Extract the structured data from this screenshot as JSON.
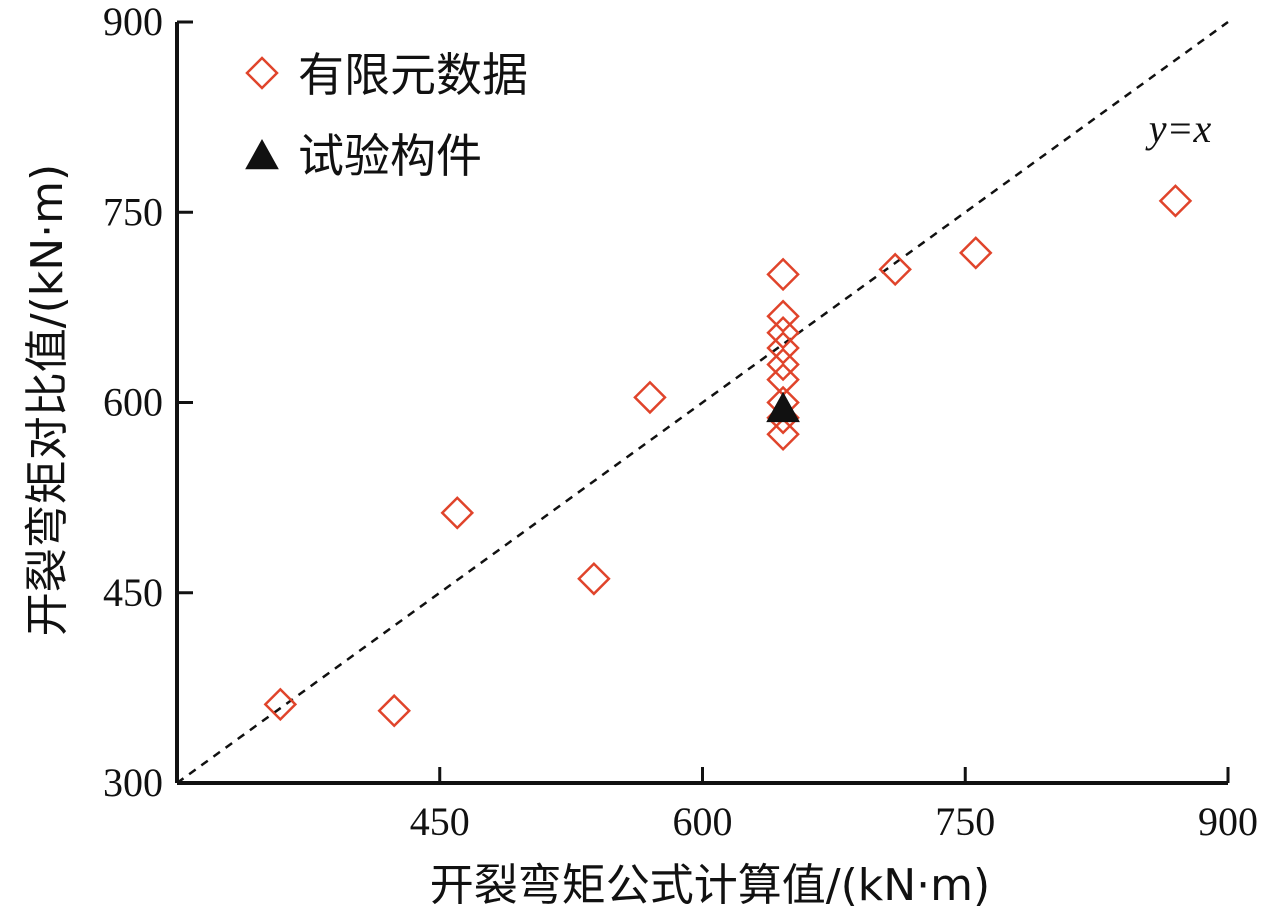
{
  "chart_data": {
    "type": "scatter",
    "xlabel": "开裂弯矩公式计算值/(kN·m)",
    "ylabel": "开裂弯矩对比值/(kN·m)",
    "xlim": [
      300,
      900
    ],
    "ylim": [
      300,
      900
    ],
    "xticks": [
      450,
      600,
      750,
      900
    ],
    "yticks": [
      300,
      450,
      600,
      750,
      900
    ],
    "reference_line": {
      "label": "y=x",
      "style": "dashed"
    },
    "legend_position": "top-left",
    "series": [
      {
        "name": "有限元数据",
        "marker": "diamond-open",
        "color": "#e0442b",
        "points": [
          {
            "x": 359,
            "y": 362
          },
          {
            "x": 424,
            "y": 357
          },
          {
            "x": 460,
            "y": 513
          },
          {
            "x": 538,
            "y": 461
          },
          {
            "x": 570,
            "y": 604
          },
          {
            "x": 646,
            "y": 701
          },
          {
            "x": 646,
            "y": 668
          },
          {
            "x": 646,
            "y": 655
          },
          {
            "x": 646,
            "y": 643
          },
          {
            "x": 646,
            "y": 630
          },
          {
            "x": 646,
            "y": 618
          },
          {
            "x": 646,
            "y": 600
          },
          {
            "x": 646,
            "y": 588
          },
          {
            "x": 646,
            "y": 575
          },
          {
            "x": 710,
            "y": 705
          },
          {
            "x": 756,
            "y": 718
          },
          {
            "x": 870,
            "y": 759
          }
        ]
      },
      {
        "name": "试验构件",
        "marker": "triangle-filled",
        "color": "#111111",
        "points": [
          {
            "x": 646,
            "y": 595
          }
        ]
      }
    ]
  }
}
